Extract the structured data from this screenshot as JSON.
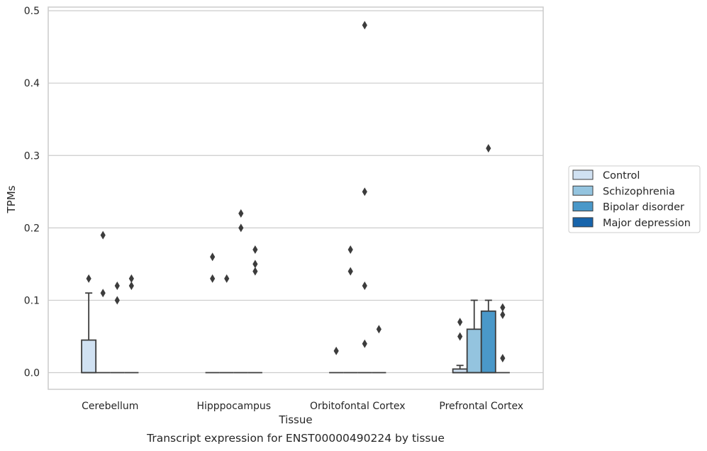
{
  "chart_data": {
    "type": "box",
    "caption": "Transcript expression for ENST00000490224 by tissue",
    "xlabel": "Tissue",
    "ylabel": "TPMs",
    "ylim": [
      -0.023,
      0.505
    ],
    "yticks": [
      0.0,
      0.1,
      0.2,
      0.3,
      0.4,
      0.5
    ],
    "ytick_labels": [
      "0.0",
      "0.1",
      "0.2",
      "0.3",
      "0.4",
      "0.5"
    ],
    "grid": true,
    "legend_position": "right",
    "categories": [
      "Cerebellum",
      "Hipppocampus",
      "Orbitofontal Cortex",
      "Prefrontal Cortex"
    ],
    "series": [
      {
        "name": "Control",
        "color": "#d0e1f2"
      },
      {
        "name": "Schizophrenia",
        "color": "#94c4df"
      },
      {
        "name": "Bipolar disorder",
        "color": "#4a98c9"
      },
      {
        "name": "Major depression",
        "color": "#1764ab"
      }
    ],
    "boxes": [
      {
        "category": 0,
        "series": 0,
        "q1": 0.0,
        "median": 0.0,
        "q3": 0.045,
        "whisker_low": 0.0,
        "whisker_high": 0.11
      },
      {
        "category": 0,
        "series": 1,
        "q1": 0.0,
        "median": 0.0,
        "q3": 0.0,
        "whisker_low": 0.0,
        "whisker_high": 0.0
      },
      {
        "category": 0,
        "series": 2,
        "q1": 0.0,
        "median": 0.0,
        "q3": 0.0,
        "whisker_low": 0.0,
        "whisker_high": 0.0
      },
      {
        "category": 0,
        "series": 3,
        "q1": 0.0,
        "median": 0.0,
        "q3": 0.0,
        "whisker_low": 0.0,
        "whisker_high": 0.0
      },
      {
        "category": 1,
        "series": 0,
        "q1": 0.0,
        "median": 0.0,
        "q3": 0.0,
        "whisker_low": 0.0,
        "whisker_high": 0.0
      },
      {
        "category": 1,
        "series": 1,
        "q1": 0.0,
        "median": 0.0,
        "q3": 0.0,
        "whisker_low": 0.0,
        "whisker_high": 0.0
      },
      {
        "category": 1,
        "series": 2,
        "q1": 0.0,
        "median": 0.0,
        "q3": 0.0,
        "whisker_low": 0.0,
        "whisker_high": 0.0
      },
      {
        "category": 1,
        "series": 3,
        "q1": 0.0,
        "median": 0.0,
        "q3": 0.0,
        "whisker_low": 0.0,
        "whisker_high": 0.0
      },
      {
        "category": 2,
        "series": 0,
        "q1": 0.0,
        "median": 0.0,
        "q3": 0.0,
        "whisker_low": 0.0,
        "whisker_high": 0.0
      },
      {
        "category": 2,
        "series": 1,
        "q1": 0.0,
        "median": 0.0,
        "q3": 0.0,
        "whisker_low": 0.0,
        "whisker_high": 0.0
      },
      {
        "category": 2,
        "series": 2,
        "q1": 0.0,
        "median": 0.0,
        "q3": 0.0,
        "whisker_low": 0.0,
        "whisker_high": 0.0
      },
      {
        "category": 2,
        "series": 3,
        "q1": 0.0,
        "median": 0.0,
        "q3": 0.0,
        "whisker_low": 0.0,
        "whisker_high": 0.0
      },
      {
        "category": 3,
        "series": 0,
        "q1": 0.0,
        "median": 0.0,
        "q3": 0.005,
        "whisker_low": 0.0,
        "whisker_high": 0.01
      },
      {
        "category": 3,
        "series": 1,
        "q1": 0.0,
        "median": 0.0,
        "q3": 0.06,
        "whisker_low": 0.0,
        "whisker_high": 0.1
      },
      {
        "category": 3,
        "series": 2,
        "q1": 0.0,
        "median": 0.0,
        "q3": 0.085,
        "whisker_low": 0.0,
        "whisker_high": 0.1
      },
      {
        "category": 3,
        "series": 3,
        "q1": 0.0,
        "median": 0.0,
        "q3": 0.0,
        "whisker_low": 0.0,
        "whisker_high": 0.0
      }
    ],
    "outliers": [
      {
        "category": 0,
        "series": 0,
        "values": [
          0.13
        ]
      },
      {
        "category": 0,
        "series": 1,
        "values": [
          0.19,
          0.11
        ]
      },
      {
        "category": 0,
        "series": 2,
        "values": [
          0.12,
          0.1
        ]
      },
      {
        "category": 0,
        "series": 3,
        "values": [
          0.13,
          0.12
        ]
      },
      {
        "category": 1,
        "series": 0,
        "values": [
          0.16,
          0.13
        ]
      },
      {
        "category": 1,
        "series": 1,
        "values": [
          0.13
        ]
      },
      {
        "category": 1,
        "series": 2,
        "values": [
          0.22,
          0.2
        ]
      },
      {
        "category": 1,
        "series": 3,
        "values": [
          0.17,
          0.15,
          0.14
        ]
      },
      {
        "category": 2,
        "series": 0,
        "values": [
          0.03
        ]
      },
      {
        "category": 2,
        "series": 1,
        "values": [
          0.17,
          0.14
        ]
      },
      {
        "category": 2,
        "series": 2,
        "values": [
          0.48,
          0.25,
          0.12,
          0.04
        ]
      },
      {
        "category": 2,
        "series": 3,
        "values": [
          0.06
        ]
      },
      {
        "category": 3,
        "series": 0,
        "values": [
          0.07,
          0.05
        ]
      },
      {
        "category": 3,
        "series": 2,
        "values": [
          0.31
        ]
      },
      {
        "category": 3,
        "series": 3,
        "values": [
          0.09,
          0.08,
          0.02
        ]
      }
    ]
  }
}
